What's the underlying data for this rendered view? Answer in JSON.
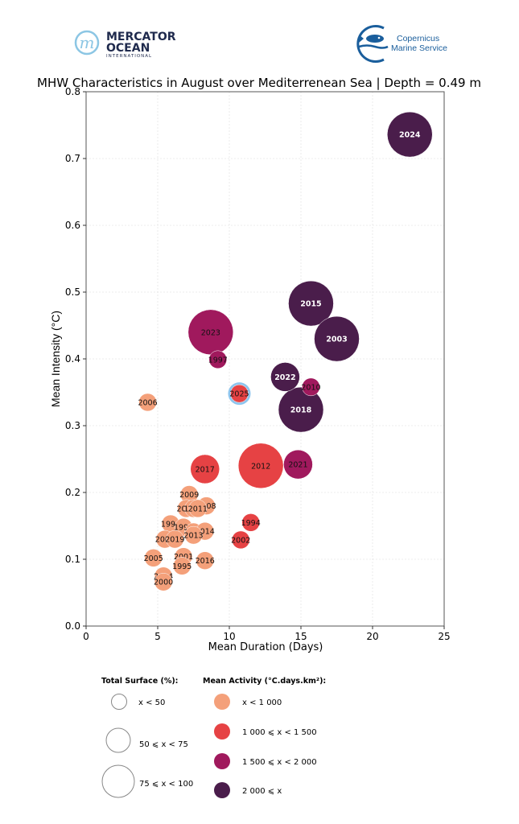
{
  "logos": {
    "mercator": {
      "line1": "MERCATOR",
      "line2": "OCEAN",
      "line3": "INTERNATIONAL",
      "mark": "m"
    },
    "copernicus": {
      "line1": "Copernicus",
      "line2": "Marine Service"
    }
  },
  "colors": {
    "activity_lt_1000": "#f4a07a",
    "activity_1000_1500": "#e64244",
    "activity_1500_2000": "#a0195d",
    "activity_ge_2000": "#4a1d4b",
    "highlight_ring": "#8ec5ee",
    "mercator_blue": "#1f2a4d",
    "mercator_light": "#8cc6e4",
    "copernicus_blue": "#1a5e9c"
  },
  "chart_data": {
    "type": "scatter",
    "title": "MHW Characteristics in August over Mediterrenean Sea | Depth = 0.49 m",
    "xlabel": "Mean Duration (Days)",
    "ylabel": "Mean Intensity (°C)",
    "xlim": [
      0,
      25
    ],
    "ylim": [
      0,
      0.8
    ],
    "xticks": [
      "0",
      "5",
      "10",
      "15",
      "20",
      "25"
    ],
    "yticks": [
      "0.0",
      "0.1",
      "0.2",
      "0.3",
      "0.4",
      "0.5",
      "0.6",
      "0.7",
      "0.8"
    ],
    "grid": true,
    "highlight_year": "2025",
    "points": [
      {
        "label": "2024",
        "x": 22.6,
        "y": 0.736,
        "surface": "75-100",
        "activity": "ge_2000"
      },
      {
        "label": "2015",
        "x": 15.7,
        "y": 0.483,
        "surface": "75-100",
        "activity": "ge_2000"
      },
      {
        "label": "2003",
        "x": 17.5,
        "y": 0.43,
        "surface": "75-100",
        "activity": "ge_2000"
      },
      {
        "label": "2023",
        "x": 8.7,
        "y": 0.44,
        "surface": "75-100",
        "activity": "1500_2000"
      },
      {
        "label": "1997",
        "x": 9.2,
        "y": 0.399,
        "surface": "lt_50",
        "activity": "1500_2000"
      },
      {
        "label": "2022",
        "x": 13.9,
        "y": 0.373,
        "surface": "50-75",
        "activity": "ge_2000"
      },
      {
        "label": "2010",
        "x": 15.7,
        "y": 0.358,
        "surface": "lt_50",
        "activity": "1500_2000"
      },
      {
        "label": "2025",
        "x": 10.7,
        "y": 0.348,
        "surface": "lt_50",
        "activity": "1000_1500"
      },
      {
        "label": "2018",
        "x": 15.0,
        "y": 0.324,
        "surface": "75-100",
        "activity": "ge_2000"
      },
      {
        "label": "2006",
        "x": 4.3,
        "y": 0.335,
        "surface": "lt_50",
        "activity": "lt_1000"
      },
      {
        "label": "2017",
        "x": 8.3,
        "y": 0.235,
        "surface": "50-75",
        "activity": "1000_1500"
      },
      {
        "label": "2012",
        "x": 12.2,
        "y": 0.24,
        "surface": "75-100",
        "activity": "1000_1500"
      },
      {
        "label": "2021",
        "x": 14.8,
        "y": 0.242,
        "surface": "50-75",
        "activity": "1500_2000"
      },
      {
        "label": "1994",
        "x": 11.5,
        "y": 0.155,
        "surface": "lt_50",
        "activity": "1000_1500"
      },
      {
        "label": "2002",
        "x": 10.8,
        "y": 0.129,
        "surface": "lt_50",
        "activity": "1000_1500"
      },
      {
        "label": "2009",
        "x": 7.2,
        "y": 0.197,
        "surface": "lt_50",
        "activity": "lt_1000"
      },
      {
        "label": "2008",
        "x": 8.4,
        "y": 0.18,
        "surface": "lt_50",
        "activity": "lt_1000"
      },
      {
        "label": "2020",
        "x": 7.0,
        "y": 0.176,
        "surface": "lt_50",
        "activity": "lt_1000"
      },
      {
        "label": "1999",
        "x": 7.5,
        "y": 0.176,
        "surface": "lt_50",
        "activity": "lt_1000"
      },
      {
        "label": "2011",
        "x": 7.8,
        "y": 0.176,
        "surface": "lt_50",
        "activity": "lt_1000"
      },
      {
        "label": "1996",
        "x": 5.9,
        "y": 0.153,
        "surface": "lt_50",
        "activity": "lt_1000"
      },
      {
        "label": "1993",
        "x": 6.8,
        "y": 0.148,
        "surface": "lt_50",
        "activity": "lt_1000"
      },
      {
        "label": "1998",
        "x": 7.5,
        "y": 0.141,
        "surface": "lt_50",
        "activity": "lt_1000"
      },
      {
        "label": "2014",
        "x": 8.3,
        "y": 0.142,
        "surface": "lt_50",
        "activity": "lt_1000"
      },
      {
        "label": "2013",
        "x": 7.5,
        "y": 0.136,
        "surface": "lt_50",
        "activity": "lt_1000"
      },
      {
        "label": "2007",
        "x": 5.5,
        "y": 0.13,
        "surface": "lt_50",
        "activity": "lt_1000"
      },
      {
        "label": "2019",
        "x": 6.2,
        "y": 0.13,
        "surface": "lt_50",
        "activity": "lt_1000"
      },
      {
        "label": "2005",
        "x": 4.7,
        "y": 0.102,
        "surface": "lt_50",
        "activity": "lt_1000"
      },
      {
        "label": "2001",
        "x": 6.8,
        "y": 0.104,
        "surface": "lt_50",
        "activity": "lt_1000"
      },
      {
        "label": "1995",
        "x": 6.7,
        "y": 0.09,
        "surface": "lt_50",
        "activity": "lt_1000"
      },
      {
        "label": "2016",
        "x": 8.3,
        "y": 0.098,
        "surface": "lt_50",
        "activity": "lt_1000"
      },
      {
        "label": "2004",
        "x": 5.4,
        "y": 0.075,
        "surface": "lt_50",
        "activity": "lt_1000"
      },
      {
        "label": "2000",
        "x": 5.4,
        "y": 0.066,
        "surface": "lt_50",
        "activity": "lt_1000"
      }
    ],
    "legend": {
      "surface_title": "Total Surface (%):",
      "surface_items": [
        {
          "key": "lt_50",
          "label": "x < 50"
        },
        {
          "key": "50-75",
          "label": "50 ⩽ x < 75"
        },
        {
          "key": "75-100",
          "label": "75 ⩽ x < 100"
        }
      ],
      "activity_title": "Mean Activity (°C.days.km²):",
      "activity_items": [
        {
          "key": "lt_1000",
          "label": "x < 1 000"
        },
        {
          "key": "1000_1500",
          "label": "1 000 ⩽ x < 1 500"
        },
        {
          "key": "1500_2000",
          "label": "1 500 ⩽ x < 2 000"
        },
        {
          "key": "ge_2000",
          "label": "2 000 ⩽ x"
        }
      ],
      "placement": "bottom"
    }
  }
}
